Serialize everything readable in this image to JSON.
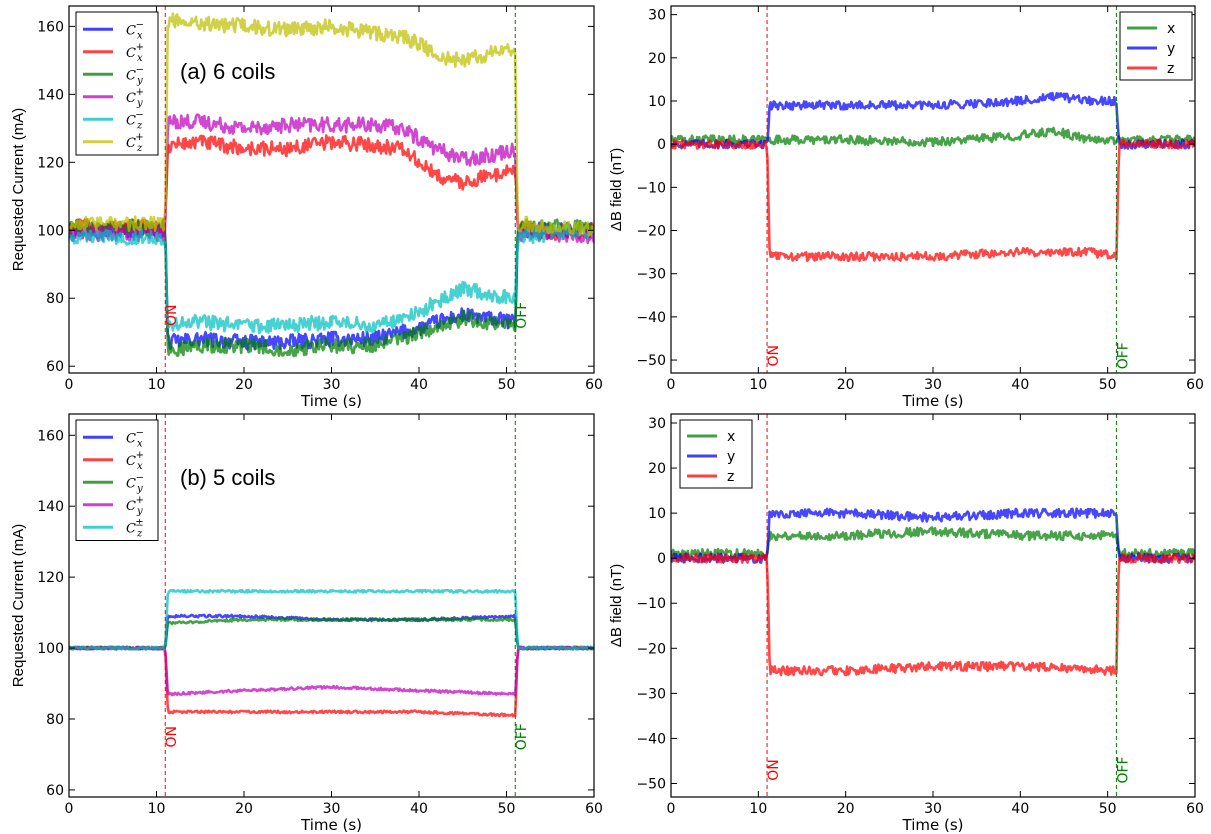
{
  "chart_data": [
    {
      "panel": "top-left",
      "type": "line",
      "annotation": "(a) 6 coils",
      "xlabel": "Time (s)",
      "ylabel": "Requested Current (mA)",
      "xlim": [
        0,
        60
      ],
      "ylim": [
        58,
        166
      ],
      "xticks": [
        "0",
        "10",
        "20",
        "30",
        "40",
        "50",
        "60"
      ],
      "yticks": [
        "60",
        "80",
        "100",
        "120",
        "140",
        "160"
      ],
      "events": [
        {
          "x": 11,
          "label": "ON",
          "color": "#ff0000"
        },
        {
          "x": 51,
          "label": "OFF",
          "color": "#008000"
        }
      ],
      "legend_position": "top-left",
      "series": [
        {
          "name": "C_x^-",
          "legend_base": "C",
          "legend_sub": "x",
          "legend_sup": "−",
          "color": "#0000ff",
          "x": [
            0,
            11,
            11.3,
            15,
            20,
            25,
            30,
            35,
            38,
            40,
            42,
            45,
            48,
            51,
            51.3,
            55,
            60
          ],
          "y": [
            100,
            100,
            67,
            68,
            67,
            67,
            68,
            68,
            70,
            71,
            73,
            75,
            74,
            73,
            100,
            100,
            100
          ]
        },
        {
          "name": "C_x^+",
          "legend_base": "C",
          "legend_sub": "x",
          "legend_sup": "+",
          "color": "#ff0000",
          "x": [
            0,
            11,
            11.3,
            15,
            20,
            25,
            30,
            35,
            38,
            40,
            42,
            45,
            48,
            51,
            51.3,
            55,
            60
          ],
          "y": [
            101,
            101,
            125,
            126,
            124,
            124,
            126,
            125,
            124,
            120,
            116,
            114,
            116,
            118,
            101,
            99,
            100
          ]
        },
        {
          "name": "C_y^-",
          "legend_base": "C",
          "legend_sub": "y",
          "legend_sup": "−",
          "color": "#008000",
          "x": [
            0,
            11,
            11.3,
            15,
            20,
            25,
            30,
            35,
            38,
            40,
            42,
            45,
            48,
            51,
            51.3,
            55,
            60
          ],
          "y": [
            101,
            101,
            65,
            66,
            66,
            65,
            66,
            66,
            68,
            70,
            71,
            74,
            73,
            72,
            101,
            101,
            101
          ]
        },
        {
          "name": "C_y^+",
          "legend_base": "C",
          "legend_sub": "y",
          "legend_sup": "+",
          "color": "#bf00bf",
          "x": [
            0,
            11,
            11.3,
            15,
            20,
            25,
            30,
            35,
            38,
            40,
            42,
            45,
            48,
            51,
            51.3,
            55,
            60
          ],
          "y": [
            99,
            99,
            132,
            132,
            130,
            131,
            131,
            131,
            130,
            127,
            124,
            121,
            122,
            124,
            99,
            99,
            98
          ]
        },
        {
          "name": "C_z^-",
          "legend_base": "C",
          "legend_sub": "z",
          "legend_sup": "−",
          "color": "#00bfbf",
          "x": [
            0,
            11,
            11.3,
            15,
            20,
            25,
            30,
            35,
            38,
            40,
            42,
            45,
            48,
            51,
            51.3,
            55,
            60
          ],
          "y": [
            98,
            98,
            72,
            73,
            72,
            72,
            73,
            72,
            74,
            76,
            79,
            83,
            81,
            80,
            98,
            99,
            100
          ]
        },
        {
          "name": "C_z^+",
          "legend_base": "C",
          "legend_sub": "z",
          "legend_sup": "+",
          "color": "#bfbf00",
          "x": [
            0,
            11,
            11.3,
            15,
            20,
            25,
            30,
            35,
            38,
            40,
            42,
            45,
            48,
            51,
            51.3,
            55,
            60
          ],
          "y": [
            102,
            102,
            162,
            161,
            160,
            159,
            160,
            158,
            157,
            155,
            151,
            150,
            152,
            153,
            102,
            101,
            100
          ]
        }
      ]
    },
    {
      "panel": "top-right",
      "type": "line",
      "xlabel": "Time (s)",
      "ylabel": "ΔB field (nT)",
      "xlim": [
        0,
        60
      ],
      "ylim": [
        -53,
        32
      ],
      "xticks": [
        "0",
        "10",
        "20",
        "30",
        "40",
        "50",
        "60"
      ],
      "yticks": [
        "−50",
        "−40",
        "−30",
        "−20",
        "−10",
        "0",
        "10",
        "20",
        "30"
      ],
      "events": [
        {
          "x": 11,
          "label": "ON",
          "color": "#ff0000"
        },
        {
          "x": 51,
          "label": "OFF",
          "color": "#008000"
        }
      ],
      "legend_position": "top-right",
      "series": [
        {
          "name": "x",
          "color": "#008000",
          "x": [
            0,
            11,
            11.3,
            20,
            30,
            40,
            44,
            48,
            51,
            51.3,
            60
          ],
          "y": [
            1,
            1,
            1,
            1,
            0.5,
            2,
            3,
            1,
            1,
            1,
            1
          ]
        },
        {
          "name": "y",
          "color": "#0000ff",
          "x": [
            0,
            11,
            11.3,
            20,
            30,
            40,
            44,
            48,
            51,
            51.3,
            60
          ],
          "y": [
            0,
            0,
            9,
            9,
            9,
            10,
            11,
            10,
            10,
            0,
            0
          ]
        },
        {
          "name": "z",
          "color": "#ff0000",
          "x": [
            0,
            11,
            11.3,
            20,
            30,
            40,
            44,
            48,
            51,
            51.3,
            60
          ],
          "y": [
            0,
            0,
            -26,
            -26,
            -26,
            -25,
            -25,
            -25,
            -26,
            0,
            0
          ]
        }
      ]
    },
    {
      "panel": "bottom-left",
      "type": "line",
      "annotation": "(b) 5 coils",
      "xlabel": "Time (s)",
      "ylabel": "Requested Current (mA)",
      "xlim": [
        0,
        60
      ],
      "ylim": [
        58,
        166
      ],
      "xticks": [
        "0",
        "10",
        "20",
        "30",
        "40",
        "50",
        "60"
      ],
      "yticks": [
        "60",
        "80",
        "100",
        "120",
        "140",
        "160"
      ],
      "events": [
        {
          "x": 11,
          "label": "ON",
          "color": "#ff0000"
        },
        {
          "x": 51,
          "label": "OFF",
          "color": "#008000"
        }
      ],
      "legend_position": "top-left",
      "series": [
        {
          "name": "C_x^-",
          "legend_base": "C",
          "legend_sub": "x",
          "legend_sup": "−",
          "color": "#0000ff",
          "x": [
            0,
            11,
            11.3,
            20,
            30,
            40,
            51,
            51.3,
            60
          ],
          "y": [
            100,
            100,
            109,
            109,
            108,
            108,
            109,
            100,
            100
          ]
        },
        {
          "name": "C_x^+",
          "legend_base": "C",
          "legend_sub": "x",
          "legend_sup": "+",
          "color": "#ff0000",
          "x": [
            0,
            11,
            11.3,
            20,
            30,
            40,
            51,
            51.3,
            60
          ],
          "y": [
            100,
            100,
            82,
            82,
            82,
            82,
            81,
            100,
            100
          ]
        },
        {
          "name": "C_y^-",
          "legend_base": "C",
          "legend_sub": "y",
          "legend_sup": "−",
          "color": "#008000",
          "x": [
            0,
            11,
            11.3,
            20,
            30,
            40,
            51,
            51.3,
            60
          ],
          "y": [
            100,
            100,
            107,
            108,
            108,
            108,
            108,
            100,
            100
          ]
        },
        {
          "name": "C_y^+",
          "legend_base": "C",
          "legend_sub": "y",
          "legend_sup": "+",
          "color": "#bf00bf",
          "x": [
            0,
            11,
            11.3,
            20,
            30,
            40,
            51,
            51.3,
            60
          ],
          "y": [
            100,
            100,
            87,
            88,
            89,
            88,
            87,
            100,
            100
          ]
        },
        {
          "name": "C_z^±",
          "legend_base": "C",
          "legend_sub": "z",
          "legend_sup": "±",
          "color": "#00bfbf",
          "x": [
            0,
            11,
            11.3,
            20,
            30,
            40,
            51,
            51.3,
            60
          ],
          "y": [
            100,
            100,
            116,
            116,
            116,
            116,
            116,
            100,
            100
          ]
        }
      ]
    },
    {
      "panel": "bottom-right",
      "type": "line",
      "xlabel": "Time (s)",
      "ylabel": "ΔB field (nT)",
      "xlim": [
        0,
        60
      ],
      "ylim": [
        -53,
        32
      ],
      "xticks": [
        "0",
        "10",
        "20",
        "30",
        "40",
        "50",
        "60"
      ],
      "yticks": [
        "−50",
        "−40",
        "−30",
        "−20",
        "−10",
        "0",
        "10",
        "20",
        "30"
      ],
      "events": [
        {
          "x": 11,
          "label": "ON",
          "color": "#ff0000"
        },
        {
          "x": 51,
          "label": "OFF",
          "color": "#008000"
        }
      ],
      "legend_position": "top-left",
      "series": [
        {
          "name": "x",
          "color": "#008000",
          "x": [
            0,
            11,
            11.3,
            20,
            30,
            40,
            51,
            51.3,
            60
          ],
          "y": [
            1,
            1,
            5,
            5,
            6,
            5,
            5,
            1,
            1
          ]
        },
        {
          "name": "y",
          "color": "#0000ff",
          "x": [
            0,
            11,
            11.3,
            20,
            30,
            40,
            51,
            51.3,
            60
          ],
          "y": [
            0,
            0,
            10,
            10,
            9,
            10,
            10,
            0,
            0
          ]
        },
        {
          "name": "z",
          "color": "#ff0000",
          "x": [
            0,
            11,
            11.3,
            20,
            30,
            40,
            51,
            51.3,
            60
          ],
          "y": [
            0,
            0,
            -25,
            -25,
            -24,
            -24,
            -25,
            0,
            0
          ]
        }
      ]
    }
  ]
}
